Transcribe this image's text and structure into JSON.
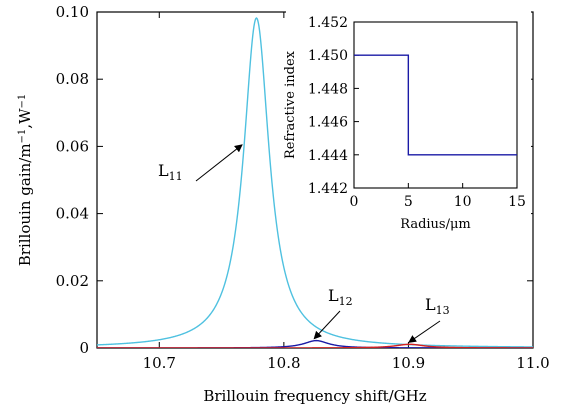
{
  "chart_data": [
    {
      "type": "line",
      "xlabel": "Brillouin frequency shift/GHz",
      "ylabel": "Brillouin gain/m",
      "ylabel_sup1": "−1",
      "ylabel_mid": ",W",
      "ylabel_sup2": "−1",
      "xlim": [
        10.65,
        11.0
      ],
      "ylim": [
        0,
        0.1
      ],
      "xticks": [
        "10.7",
        "10.8",
        "10.9",
        "11.0"
      ],
      "yticks": [
        "0",
        "0.02",
        "0.04",
        "0.06",
        "0.08",
        "0.10"
      ],
      "grid": false,
      "series": [
        {
          "name": "L11",
          "color": "#4fc1e0",
          "peak_x": 10.778,
          "peak_y": 0.0982,
          "half_width": 0.0125
        },
        {
          "name": "L12",
          "color": "#1a1aa6",
          "peak_x": 10.826,
          "peak_y": 0.0022,
          "half_width": 0.012
        },
        {
          "name": "L13",
          "color": "#d42020",
          "peak_x": 10.901,
          "peak_y": 0.0011,
          "half_width": 0.014
        }
      ],
      "annotations": [
        {
          "text": "L",
          "sub": "11",
          "target_series": "L11",
          "target_x": 10.768
        },
        {
          "text": "L",
          "sub": "12",
          "target_series": "L12",
          "target_x": 10.826
        },
        {
          "text": "L",
          "sub": "13",
          "target_series": "L13",
          "target_x": 10.902
        }
      ]
    },
    {
      "type": "line",
      "xlabel": "Radius/μm",
      "ylabel": "Refractive index",
      "xlim": [
        0,
        15
      ],
      "ylim": [
        1.442,
        1.452
      ],
      "xticks": [
        "0",
        "5",
        "10",
        "15"
      ],
      "yticks": [
        "1.442",
        "1.444",
        "1.446",
        "1.448",
        "1.450",
        "1.452"
      ],
      "series": [
        {
          "name": "",
          "color": "#1a1aa6",
          "x": [
            0,
            5,
            5,
            15
          ],
          "y": [
            1.45,
            1.45,
            1.444,
            1.444
          ]
        }
      ]
    }
  ]
}
